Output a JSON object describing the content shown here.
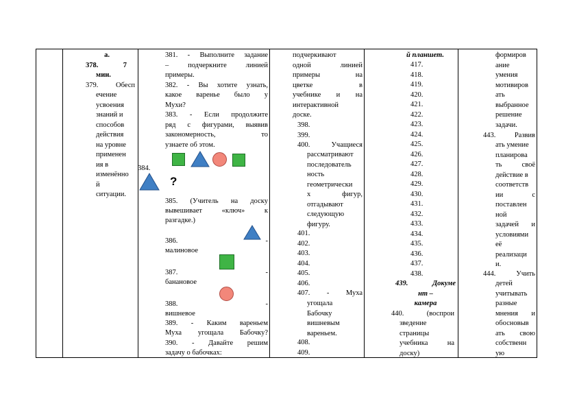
{
  "col2": {
    "l1": "а.",
    "l2a": "378.",
    "l2b": "7",
    "l3": "мин.",
    "l4a": "379.",
    "l4b": "Обесп",
    "l5": "ечение",
    "l6": "усвоения",
    "l7": "знаний и",
    "l8": "способов",
    "l9": "действия",
    "l10": "на уровне",
    "l11": "применен",
    "l12": "ия в",
    "l13": "изменённо",
    "l14": "й",
    "l15": "ситуации."
  },
  "col3": {
    "i381a": "381.",
    "i381b": "- Выполните задание",
    "i381c": "– подчеркните линией",
    "i381d": "примеры.",
    "i382a": "382.",
    "i382b": "- Вы хотите узнать,",
    "i382c": "какое варенье было у",
    "i382d": "Мухи?",
    "i383a": "383.",
    "i383b": "- Если продолжите",
    "i383c": "ряд с фигурами, выявив",
    "i383d": "закономерность, то",
    "i383e": "узнаете об этом.",
    "n384": "384.",
    "q": "?",
    "i385a": "385.",
    "i385b": "(Учитель на доску",
    "i385c": "вывешивает «ключ» к",
    "i385d": "разгадке.)",
    "i386": "386.",
    "d386": "-",
    "w386": "малиновое",
    "i387": "387.",
    "d387": "-",
    "w387": "банановое",
    "i388": "388.",
    "d388": "-",
    "w388": "вишневое",
    "i389a": "389.",
    "i389b": "- Каким вареньем",
    "i389c": "Муха угощала Бабочку?",
    "i390a": "390.",
    "i390b": "- Давайте решим",
    "i390c": "задачу о бабочках:"
  },
  "col4": {
    "a1": "подчеркивают",
    "a2": "одной линией",
    "a3": "примеры на",
    "a4": "цветке в",
    "a5": "учебнике и на",
    "a6": "интерактивной",
    "a7": "доске.",
    "n398": "398.",
    "n399": "399.",
    "n400a": "400.",
    "n400b": "Учащиеся",
    "b1": "рассматривают",
    "b2": "последователь",
    "b3": "ность",
    "b4": "геометрически",
    "b5": "х фигур,",
    "b6": "отгадывают",
    "b7": "следующую",
    "b8": "фигуру.",
    "n401": "401.",
    "n402": "402.",
    "n403": "403.",
    "n404": "404.",
    "n405": "405.",
    "n406": "406.",
    "n407a": "407.",
    "n407b": "- Муха",
    "c1": "угощала",
    "c2": "Бабочку",
    "c3": "вишневым",
    "c4": "вареньем.",
    "n408": "408.",
    "n409": "409."
  },
  "col5": {
    "t": "й планшет.",
    "nums": [
      "417.",
      "418.",
      "419.",
      "420.",
      "421.",
      "422.",
      "423.",
      "424.",
      "425.",
      "426.",
      "427.",
      "428.",
      "429.",
      "430.",
      "431.",
      "432.",
      "433.",
      "434.",
      "435.",
      "436.",
      "437.",
      "438."
    ],
    "d439a": "439.",
    "d439b": "Докуме",
    "d439c": "нт –",
    "d439d": "камера",
    "n440a": "440.",
    "n440b": "(воспрои",
    "e1": "зведение",
    "e2": "страницы",
    "e3": "учебника на",
    "e4": "доску)"
  },
  "col6": {
    "f1": "формиров",
    "f2": "ание",
    "f3": "умения",
    "f4": "мотивиров",
    "f5": "ать",
    "f6": "выбранное",
    "f7": "решение",
    "f8": "задачи.",
    "n443a": "443.",
    "n443b": "Развив",
    "g1": "ать умение",
    "g2": "планирова",
    "g3": "ть своё",
    "g4": "действие в",
    "g5": "соответств",
    "g6": "ии с",
    "g7": "поставлен",
    "g8": "ной",
    "g9": "задачей и",
    "g10": "условиями",
    "g11": "её",
    "g12": "реализаци",
    "g13": "и.",
    "n444a": "444.",
    "n444b": "Учить",
    "h1": "детей",
    "h2": "учитывать",
    "h3": "разные",
    "h4": "мнения и",
    "h5": "обосновыв",
    "h6": "ать свою",
    "h7": "собственн",
    "h8": "ую"
  },
  "colors": {
    "green": "#3fb445",
    "blue": "#3f7fc4",
    "pink": "#f2877a"
  }
}
